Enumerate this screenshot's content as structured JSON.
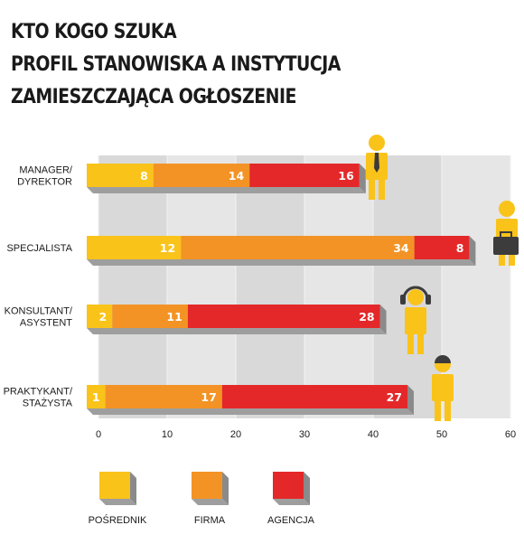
{
  "title": {
    "line1": "KTO KOGO SZUKA",
    "line2": "PROFIL STANOWISKA A INSTYTUCJA",
    "line3": "ZAMIESZCZAJĄCA OGŁOSZENIE"
  },
  "chart_data": {
    "type": "bar",
    "orientation": "horizontal",
    "stacked": true,
    "categories": [
      "MANAGER/\nDYREKTOR",
      "SPECJALISTA",
      "KONSULTANT/\nASYSTENT",
      "PRAKTYKANT/\nSTAŻYSTA"
    ],
    "series": [
      {
        "name": "POŚREDNIK",
        "values": [
          8,
          12,
          2,
          1
        ],
        "color": "#f9c31a"
      },
      {
        "name": "FIRMA",
        "values": [
          14,
          34,
          11,
          17
        ],
        "color": "#f39325"
      },
      {
        "name": "AGENCJA",
        "values": [
          16,
          8,
          28,
          27
        ],
        "color": "#e42829"
      }
    ],
    "xlim": [
      0,
      60
    ],
    "xticks": [
      0,
      10,
      20,
      30,
      40,
      50,
      60
    ],
    "grid": true,
    "legend": "bottom",
    "icons": [
      "businessman-icon",
      "briefcase-person-icon",
      "headset-person-icon",
      "helmet-person-icon"
    ],
    "icon_color": "#f9c31a"
  }
}
